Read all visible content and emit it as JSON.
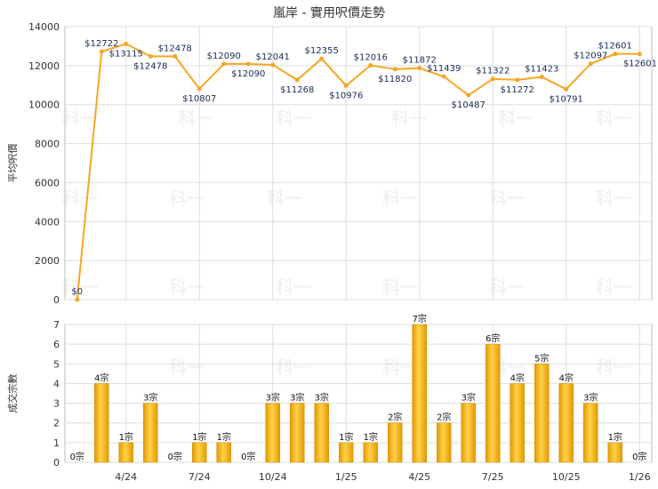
{
  "chart_data": [
    {
      "type": "line",
      "title": "嵐岸 - 實用呎價走勢",
      "ylabel": "平均呎價",
      "ylim": [
        0,
        14000
      ],
      "yticks": [
        0,
        2000,
        4000,
        6000,
        8000,
        10000,
        12000,
        14000
      ],
      "grid": true,
      "color": "#f5a623",
      "value_labels": [
        "$0",
        "$12722",
        "$13115",
        "$12478",
        "$12478",
        "$10807",
        "$12090",
        "$12090",
        "$12041",
        "$11268",
        "$12355",
        "$10976",
        "$12016",
        "$11820",
        "$11872",
        "$11439",
        "$10487",
        "$11322",
        "$11272",
        "$11423",
        "$10791",
        "$12097",
        "$12601",
        "$12601"
      ],
      "values": [
        0,
        12722,
        13115,
        12478,
        12478,
        10807,
        12090,
        12090,
        12041,
        11268,
        12355,
        10976,
        12016,
        11820,
        11872,
        11439,
        10487,
        11322,
        11272,
        11423,
        10791,
        12097,
        12601,
        12601
      ]
    },
    {
      "type": "bar",
      "ylabel": "成交宗數",
      "ylim": [
        0,
        7
      ],
      "yticks": [
        0,
        1,
        2,
        3,
        4,
        5,
        6,
        7
      ],
      "grid": true,
      "color": "#f0b000",
      "value_suffix": "宗",
      "values": [
        0,
        4,
        1,
        3,
        0,
        1,
        1,
        0,
        3,
        3,
        3,
        1,
        1,
        2,
        7,
        2,
        3,
        6,
        4,
        5,
        4,
        3,
        1,
        0
      ]
    }
  ],
  "x_axis": {
    "tick_labels": [
      "4/24",
      "7/24",
      "10/24",
      "1/25",
      "4/25",
      "7/25",
      "10/25",
      "1/26"
    ],
    "tick_index": [
      2,
      5,
      8,
      11,
      14,
      17,
      20,
      23
    ]
  },
  "watermark": "科一"
}
